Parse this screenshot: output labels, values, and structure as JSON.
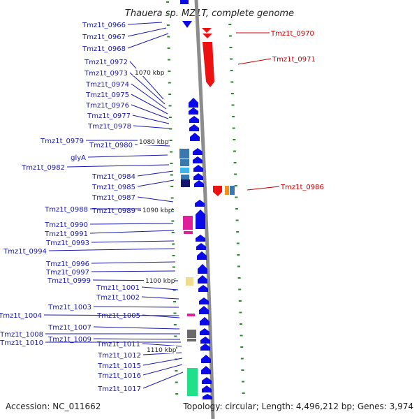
{
  "title": "Thauera sp. MZ1T, complete genome",
  "footer": {
    "accession": "Accession: NC_011662",
    "summary": "Topology: circular; Length: 4,496,212 bp; Genes: 3,974"
  },
  "scale_labels": [
    "1070 kbp",
    "1080 kbp",
    "1090 kbp",
    "1100 kbp",
    "1110 kbp"
  ],
  "left_labels": [
    "Tmz1t_0966",
    "Tmz1t_0967",
    "Tmz1t_0968",
    "Tmz1t_0972",
    "Tmz1t_0973",
    "Tmz1t_0974",
    "Tmz1t_0975",
    "Tmz1t_0976",
    "Tmz1t_0977",
    "Tmz1t_0978",
    "Tmz1t_0979",
    "Tmz1t_0980",
    "glyA",
    "Tmz1t_0982",
    "Tmz1t_0984",
    "Tmz1t_0985",
    "Tmz1t_0987",
    "Tmz1t_0988",
    "Tmz1t_0989",
    "Tmz1t_0990",
    "Tmz1t_0991",
    "Tmz1t_0993",
    "Tmz1t_0994",
    "Tmz1t_0996",
    "Tmz1t_0997",
    "Tmz1t_0999",
    "Tmz1t_1001",
    "Tmz1t_1002",
    "Tmz1t_1003",
    "Tmz1t_1004",
    "Tmz1t_1005",
    "Tmz1t_1007",
    "Tmz1t_1008",
    "Tmz1t_1009",
    "Tmz1t_1010",
    "Tmz1t_1011",
    "Tmz1t_1012",
    "Tmz1t_1015",
    "Tmz1t_1016",
    "Tmz1t_1017"
  ],
  "right_labels": [
    "Tmz1t_0970",
    "Tmz1t_0971",
    "Tmz1t_0986"
  ],
  "colors": {
    "forward_gene": "#0a0ae6",
    "reverse_gene": "#ee1111",
    "backbone": "#8c8c8c",
    "tick": "#2a8a2a",
    "left_label": "#1a1aa8",
    "right_label": "#c00000",
    "feature_steelblue": "#3a78b0",
    "feature_skyblue": "#3fb6ea",
    "feature_navy": "#15156e",
    "feature_magenta": "#e0209a",
    "feature_khaki": "#efdc8e",
    "feature_gray": "#6a6a6a",
    "feature_green": "#22e08a",
    "feature_orange": "#f09020"
  }
}
